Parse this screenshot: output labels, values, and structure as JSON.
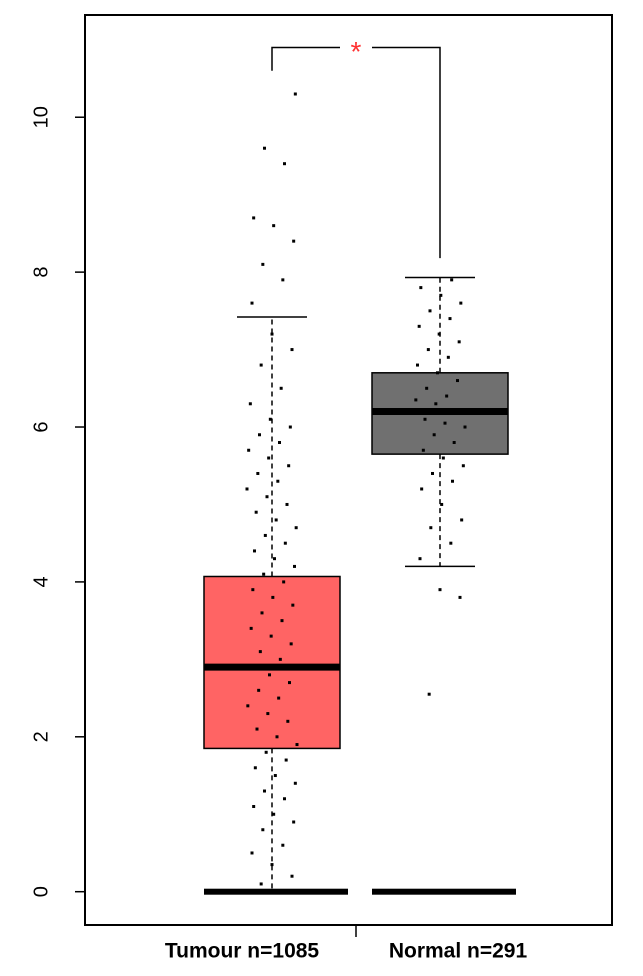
{
  "chart_data": {
    "type": "box",
    "categories": [
      "Tumour n=1085",
      "Normal n=291"
    ],
    "ylim": [
      -0.43,
      11.32
    ],
    "yticks": [
      0,
      2,
      4,
      6,
      8,
      10
    ],
    "boxes": [
      {
        "color": "#ff6464",
        "whisker_low": 0,
        "q1": 1.85,
        "median": 2.9,
        "q3": 4.07,
        "whisker_high": 7.42,
        "points": [
          0,
          0,
          0,
          0,
          0,
          0,
          0,
          0,
          0,
          0,
          0,
          0,
          0.1,
          0.2,
          0.35,
          0.5,
          0.6,
          0.8,
          0.9,
          1.0,
          1.1,
          1.2,
          1.3,
          1.4,
          1.5,
          1.6,
          1.7,
          1.8,
          1.9,
          2.0,
          2.1,
          2.2,
          2.3,
          2.4,
          2.5,
          2.6,
          2.7,
          2.8,
          2.9,
          3.0,
          3.1,
          3.2,
          3.3,
          3.4,
          3.5,
          3.6,
          3.7,
          3.8,
          3.9,
          4.0,
          4.1,
          4.2,
          4.3,
          4.4,
          4.5,
          4.6,
          4.7,
          4.8,
          4.9,
          5.0,
          5.1,
          5.2,
          5.3,
          5.4,
          5.5,
          5.6,
          5.7,
          5.8,
          5.9,
          6.0,
          6.1,
          6.3,
          6.5,
          6.8,
          7.0,
          7.2,
          7.6,
          7.9,
          8.1,
          8.4,
          8.6,
          8.7,
          9.4,
          9.6,
          10.3
        ]
      },
      {
        "color": "#707070",
        "whisker_low": 4.2,
        "q1": 5.65,
        "median": 6.2,
        "q3": 6.7,
        "whisker_high": 7.93,
        "points": [
          0,
          0,
          0,
          0,
          0,
          0,
          0,
          0,
          0,
          0,
          0,
          0,
          2.55,
          3.8,
          3.9,
          4.3,
          4.5,
          4.7,
          4.8,
          5.0,
          5.2,
          5.3,
          5.4,
          5.5,
          5.6,
          5.7,
          5.8,
          5.9,
          6.0,
          6.05,
          6.1,
          6.2,
          6.3,
          6.35,
          6.4,
          6.5,
          6.6,
          6.7,
          6.8,
          6.9,
          7.0,
          7.1,
          7.2,
          7.3,
          7.4,
          7.5,
          7.6,
          7.7,
          7.8,
          7.9
        ]
      }
    ],
    "significance": {
      "label": "*",
      "color": "#ff3030",
      "y": 10.9,
      "left_end": 10.6,
      "right_end": 8.18
    }
  }
}
